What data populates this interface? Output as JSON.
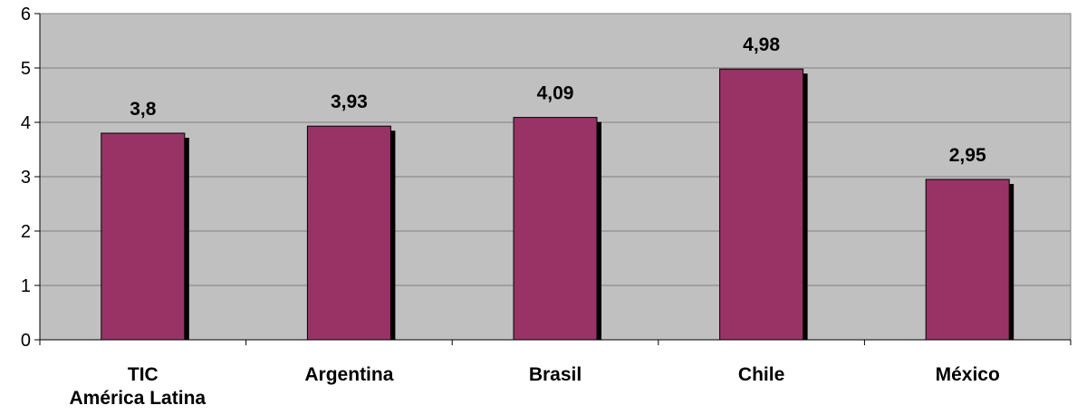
{
  "chart_data": {
    "type": "bar",
    "title": "",
    "xlabel": "",
    "ylabel": "",
    "categories": [
      [
        "TIC",
        "América Latina"
      ],
      [
        "Argentina"
      ],
      [
        "Brasil"
      ],
      [
        "Chile"
      ],
      [
        "México"
      ]
    ],
    "values": [
      3.8,
      3.93,
      4.09,
      4.98,
      2.95
    ],
    "value_labels": [
      "3,8",
      "3,93",
      "4,09",
      "4,98",
      "2,95"
    ],
    "yticks": [
      "0",
      "1",
      "2",
      "3",
      "4",
      "5",
      "6"
    ],
    "ylim": [
      0,
      6
    ],
    "grid": true,
    "legend": "none",
    "colors": {
      "bar": "#993366",
      "shadow": "#000000",
      "plot_background": "#c0c0c0",
      "gridline": "#808080"
    }
  }
}
